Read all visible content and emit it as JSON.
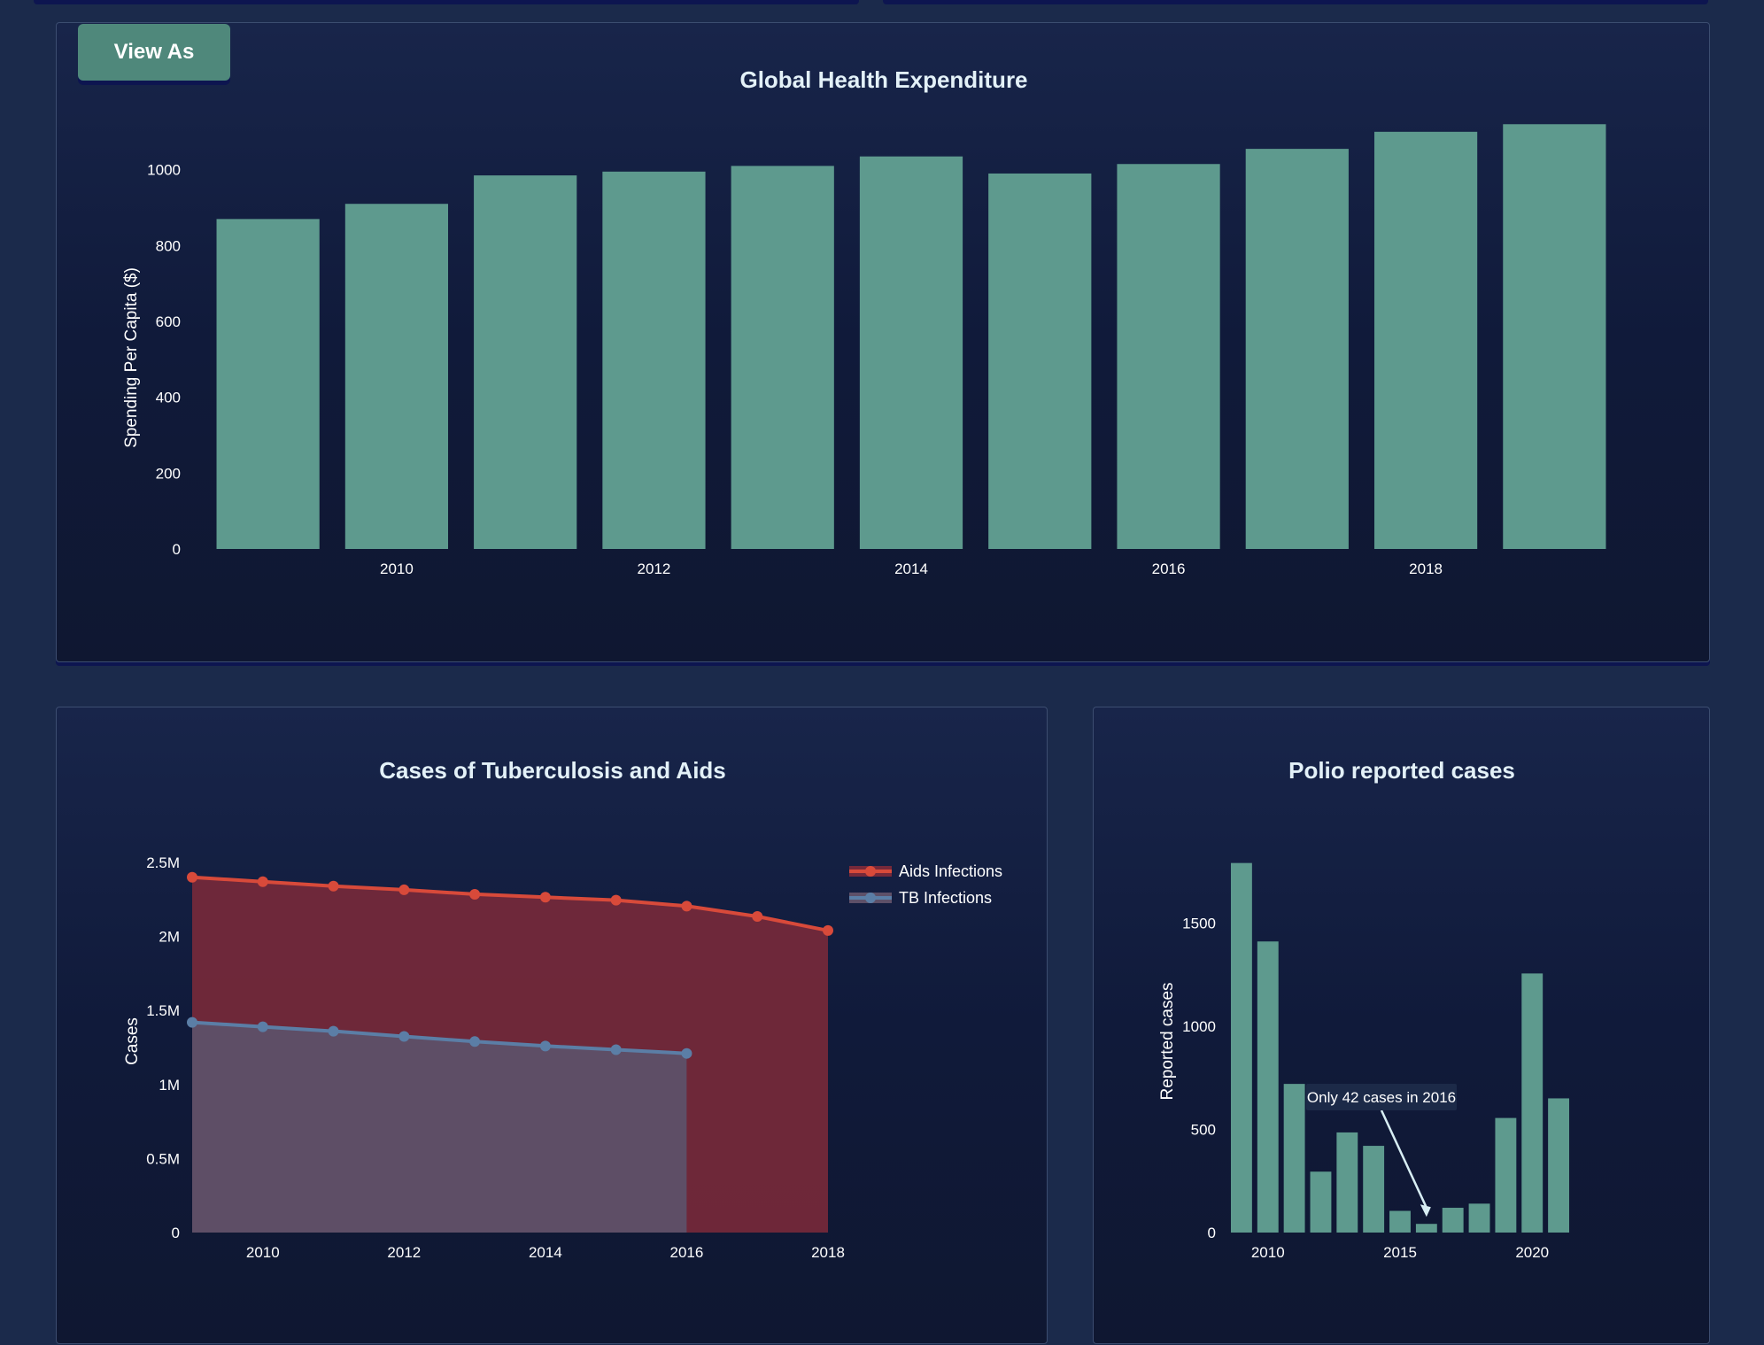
{
  "toolbar": {
    "view_as_label": "View As"
  },
  "colors": {
    "bar": "#5e9a8e",
    "aids": "#d84a3a",
    "aids_fill": "#76293a",
    "tb": "#5b7ea6",
    "tb_fill": "#5d5068"
  },
  "chart_data": [
    {
      "id": "health",
      "type": "bar",
      "title": "Global Health Expenditure",
      "xlabel": "",
      "ylabel": "Spending Per Capita ($)",
      "categories": [
        2009,
        2010,
        2011,
        2012,
        2013,
        2014,
        2015,
        2016,
        2017,
        2018,
        2019
      ],
      "values": [
        870,
        910,
        985,
        995,
        1010,
        1035,
        990,
        1015,
        1055,
        1100,
        1120
      ],
      "yticks": [
        0,
        200,
        400,
        600,
        800,
        1000
      ],
      "ylim": [
        0,
        1200
      ],
      "xticks": [
        2010,
        2012,
        2014,
        2016,
        2018
      ],
      "grid": false
    },
    {
      "id": "tbaids",
      "type": "area",
      "title": "Cases of Tuberculosis and Aids",
      "xlabel": "",
      "ylabel": "Cases",
      "xlim": [
        2009,
        2018
      ],
      "ylim": [
        0,
        2500000
      ],
      "xticks": [
        2010,
        2012,
        2014,
        2016,
        2018
      ],
      "yticks": [
        {
          "value": 0,
          "label": "0"
        },
        {
          "value": 500000,
          "label": "0.5M"
        },
        {
          "value": 1000000,
          "label": "1M"
        },
        {
          "value": 1500000,
          "label": "1.5M"
        },
        {
          "value": 2000000,
          "label": "2M"
        },
        {
          "value": 2500000,
          "label": "2.5M"
        }
      ],
      "legend_position": "top-right",
      "series": [
        {
          "name": "Aids Infections",
          "x": [
            2009,
            2010,
            2011,
            2012,
            2013,
            2014,
            2015,
            2016,
            2017,
            2018
          ],
          "values": [
            2400000,
            2370000,
            2340000,
            2315000,
            2285000,
            2265000,
            2245000,
            2205000,
            2135000,
            2040000
          ]
        },
        {
          "name": "TB Infections",
          "x": [
            2009,
            2010,
            2011,
            2012,
            2013,
            2014,
            2015,
            2016
          ],
          "values": [
            1420000,
            1390000,
            1360000,
            1325000,
            1290000,
            1260000,
            1235000,
            1210000
          ]
        }
      ]
    },
    {
      "id": "polio",
      "type": "bar",
      "title": "Polio reported cases",
      "xlabel": "",
      "ylabel": "Reported cases",
      "categories": [
        2009,
        2010,
        2011,
        2012,
        2013,
        2014,
        2015,
        2016,
        2017,
        2018,
        2019,
        2020,
        2021
      ],
      "values": [
        1790,
        1410,
        720,
        295,
        485,
        420,
        105,
        42,
        120,
        140,
        555,
        1255,
        650
      ],
      "yticks": [
        0,
        500,
        1000,
        1500
      ],
      "ylim": [
        0,
        1900
      ],
      "xticks": [
        2010,
        2015,
        2020
      ],
      "annotation": {
        "text": "Only 42 cases in 2016",
        "x": 2016,
        "y": 42
      }
    }
  ]
}
